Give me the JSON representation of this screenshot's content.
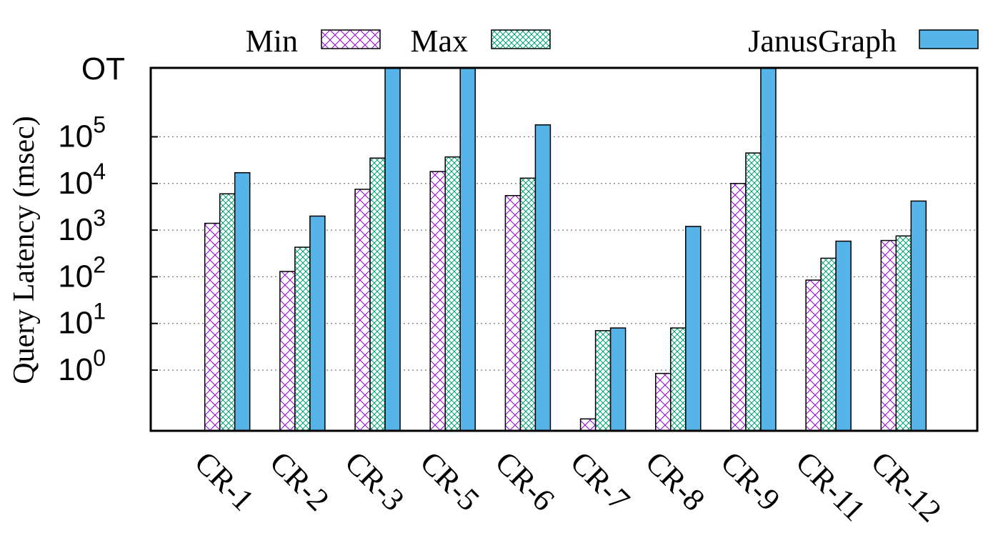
{
  "chart_data": {
    "type": "bar",
    "y_scale": "log",
    "ylabel": "Query Latency (msec)",
    "overflow_label": "OT",
    "overflow_value": 3000000,
    "ylim": [
      0.05,
      3000000
    ],
    "y_ticks": [
      {
        "value": 1,
        "base": "10",
        "exp": "0"
      },
      {
        "value": 10,
        "base": "10",
        "exp": "1"
      },
      {
        "value": 100,
        "base": "10",
        "exp": "2"
      },
      {
        "value": 1000,
        "base": "10",
        "exp": "3"
      },
      {
        "value": 10000,
        "base": "10",
        "exp": "4"
      },
      {
        "value": 100000,
        "base": "10",
        "exp": "5"
      }
    ],
    "grid": "horizontal dotted at ticks",
    "legend_position": "top",
    "categories": [
      "CR-1",
      "CR-2",
      "CR-3",
      "CR-5",
      "CR-6",
      "CR-7",
      "CR-8",
      "CR-9",
      "CR-11",
      "CR-12"
    ],
    "series": [
      {
        "name": "Min",
        "color": "#9400d3",
        "pattern": "diagonal-cross",
        "values": [
          1400,
          130,
          7500,
          18000,
          5500,
          0.09,
          0.85,
          10000,
          85,
          600
        ]
      },
      {
        "name": "Max",
        "color": "#009e73",
        "pattern": "fine-cross",
        "values": [
          6000,
          430,
          35000,
          37000,
          13000,
          7,
          8,
          45000,
          250,
          750
        ]
      },
      {
        "name": "JanusGraph",
        "color": "#56b4e9",
        "pattern": "solid",
        "values": [
          17000,
          2000,
          "OT",
          "OT",
          180000,
          8,
          1200,
          "OT",
          580,
          4200
        ]
      }
    ]
  }
}
